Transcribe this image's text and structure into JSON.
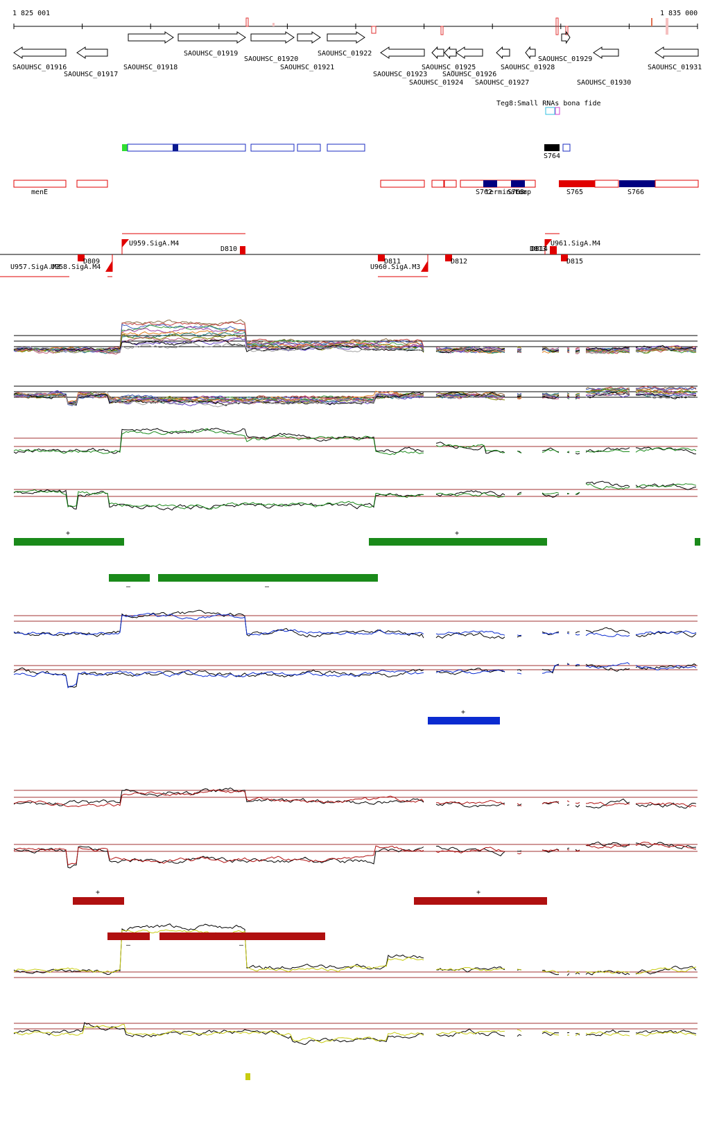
{
  "axis": {
    "start_label": "1 825 001",
    "end_label": "1 835 000"
  },
  "genes": [
    {
      "id": "SAOUHSC_01916",
      "dir": "-"
    },
    {
      "id": "SAOUHSC_01917",
      "dir": "-"
    },
    {
      "id": "SAOUHSC_01918",
      "dir": "+"
    },
    {
      "id": "SAOUHSC_01919",
      "dir": "+"
    },
    {
      "id": "SAOUHSC_01920",
      "dir": "+"
    },
    {
      "id": "SAOUHSC_01921",
      "dir": "+"
    },
    {
      "id": "SAOUHSC_01922",
      "dir": "+"
    },
    {
      "id": "SAOUHSC_01923",
      "dir": "-"
    },
    {
      "id": "SAOUHSC_01924",
      "dir": "-"
    },
    {
      "id": "SAOUHSC_01925",
      "dir": "-"
    },
    {
      "id": "SAOUHSC_01926",
      "dir": "-"
    },
    {
      "id": "SAOUHSC_01927",
      "dir": "-"
    },
    {
      "id": "SAOUHSC_01928",
      "dir": "-"
    },
    {
      "id": "SAOUHSC_01929",
      "dir": "+"
    },
    {
      "id": "SAOUHSC_01930",
      "dir": "-"
    },
    {
      "id": "SAOUHSC_01931",
      "dir": "-"
    }
  ],
  "teg8_label": "Teg8:Small RNAs bona fide",
  "feature_labels": {
    "s764": "S764",
    "mene": "menE",
    "overlap_a": "S762",
    "overlap_b": "terminator",
    "overlap_c": "S763",
    "overlap_d": "tmap",
    "s765": "S765",
    "s766": "S766"
  },
  "promoters": {
    "u959": "U959.SigA.M4",
    "u961": "U961.SigA.M4",
    "u957": "U957.SigA.M3",
    "u958": "U958.SigA.M4",
    "u960": "U960.SigA.M3"
  },
  "terminators": {
    "d809": "D809",
    "d810": "D810",
    "d811": "D811",
    "d812": "D812",
    "d813": "D813",
    "d814": "D814",
    "d815": "D815"
  },
  "strand_marks": {
    "plus": "+",
    "minus": "–"
  },
  "colors": {
    "green_condition": "#1a8a1a",
    "blue_condition": "#0a2bd0",
    "red_condition": "#b01010",
    "yellow_condition": "#c8cc10",
    "threshold_line": "#a03030",
    "feature_red": "#e00000",
    "feature_navy": "#000080"
  }
}
